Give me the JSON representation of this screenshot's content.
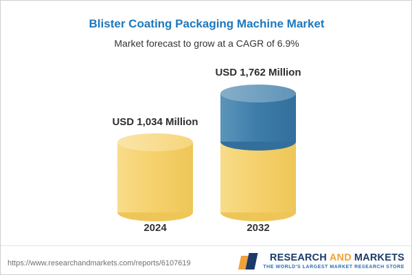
{
  "chart_data": {
    "type": "bar",
    "title": "Blister Coating Packaging Machine Market",
    "subtitle": "Market forecast to grow at a CAGR of 6.9%",
    "categories": [
      "2024",
      "2032"
    ],
    "values": [
      1034,
      1762
    ],
    "value_labels": [
      "USD 1,034 Million",
      "USD 1,762 Million"
    ],
    "unit": "USD Million",
    "cagr": "6.9%",
    "ylim": [
      0,
      1762
    ],
    "grid": false,
    "legend": "none",
    "bar_2032_segments": [
      {
        "color": "yellow",
        "value": 1034
      },
      {
        "color": "blue",
        "value": 728
      }
    ],
    "colors": {
      "bar_yellow": "#F5D06B",
      "bar_blue": "#3D7CA9",
      "title_blue": "#1C78BC"
    }
  },
  "footer": {
    "url": "https://www.researchandmarkets.com/reports/6107619",
    "logo": {
      "word1": "RESEARCH",
      "word2": "AND",
      "word3": "MARKETS",
      "tagline": "THE WORLD'S LARGEST MARKET RESEARCH STORE"
    }
  }
}
